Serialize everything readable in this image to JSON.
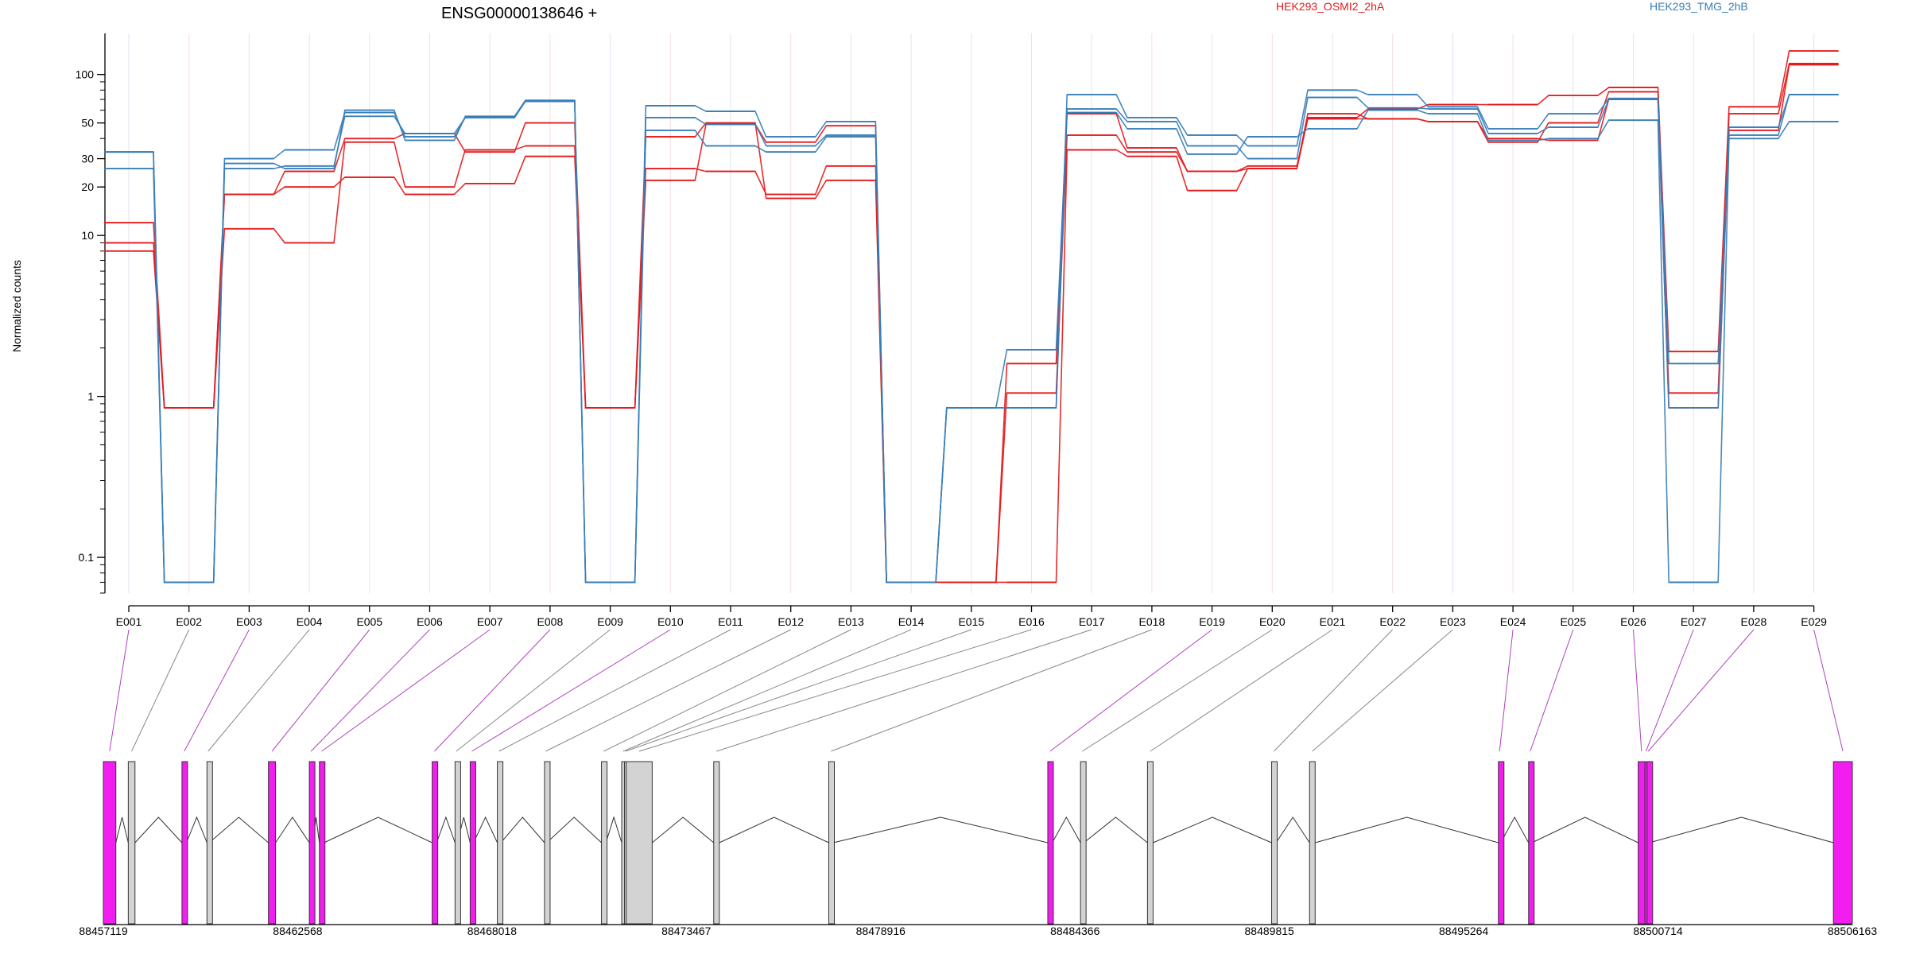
{
  "chart_data": {
    "type": "line",
    "title": "ENSG00000138646 +",
    "ylabel": "Normalized counts",
    "yscale": "log",
    "ylim": [
      0.06,
      180
    ],
    "yticks": [
      0.1,
      1,
      10,
      20,
      30,
      50,
      100
    ],
    "ytick_labels": [
      "0.1",
      "1",
      "10",
      "20",
      "30",
      "50",
      "100"
    ],
    "legend": [
      {
        "label": "HEK293_OSMI2_2hA",
        "color": "#e41a1c"
      },
      {
        "label": "HEK293_TMG_2hB",
        "color": "#377eb8"
      }
    ],
    "categories": [
      "E001",
      "E002",
      "E003",
      "E004",
      "E005",
      "E006",
      "E007",
      "E008",
      "E009",
      "E010",
      "E011",
      "E012",
      "E013",
      "E014",
      "E015",
      "E016",
      "E017",
      "E018",
      "E019",
      "E020",
      "E021",
      "E022",
      "E023",
      "E024",
      "E025",
      "E026",
      "E027",
      "E028",
      "E029"
    ],
    "series": [
      {
        "color": "#e41a1c",
        "values": [
          12,
          0.85,
          18,
          20,
          23,
          18,
          21,
          31,
          0.85,
          41,
          50,
          17,
          22,
          0.07,
          0.07,
          0.07,
          34,
          31,
          19,
          26,
          53,
          53,
          51,
          40,
          39,
          70,
          0.85,
          45,
          115
        ]
      },
      {
        "color": "#e41a1c",
        "values": [
          9,
          0.85,
          11,
          9,
          38,
          20,
          34,
          36,
          0.85,
          26,
          25,
          18,
          27,
          0.07,
          0.07,
          1.05,
          42,
          33,
          25,
          26,
          57,
          53,
          51,
          38,
          50,
          78,
          1.05,
          57,
          117
        ]
      },
      {
        "color": "#e41a1c",
        "values": [
          8,
          0.85,
          18,
          25,
          40,
          43,
          33,
          50,
          0.85,
          22,
          49,
          38,
          48,
          0.07,
          0.07,
          1.6,
          57,
          35,
          25,
          27,
          54,
          61,
          65,
          65,
          74,
          83,
          1.9,
          63,
          140
        ]
      },
      {
        "color": "#377eb8",
        "values": [
          33,
          0.07,
          30,
          34,
          58,
          41,
          54,
          68,
          0.07,
          64,
          59,
          41,
          51,
          0.07,
          0.85,
          0.85,
          75,
          54,
          42,
          36,
          80,
          75,
          63,
          46,
          57,
          71,
          1.6,
          42,
          75
        ]
      },
      {
        "color": "#377eb8",
        "values": [
          33,
          0.07,
          28,
          26,
          60,
          39,
          55,
          69,
          0.07,
          54,
          49,
          36,
          42,
          0.07,
          0.85,
          0.85,
          61,
          51,
          36,
          30,
          72,
          62,
          61,
          43,
          47,
          70,
          0.85,
          47,
          75
        ]
      },
      {
        "color": "#377eb8",
        "values": [
          26,
          0.07,
          26,
          27,
          55,
          43,
          54,
          69,
          0.07,
          45,
          36,
          33,
          41,
          0.07,
          0.85,
          1.95,
          58,
          46,
          32,
          41,
          46,
          60,
          57,
          39,
          40,
          52,
          0.07,
          40,
          51
        ]
      }
    ],
    "gene_axis": {
      "start": 88457119,
      "end": 88506163,
      "tick_labels": [
        "88457119",
        "88462568",
        "88468018",
        "88473467",
        "88478916",
        "88484366",
        "88489815",
        "88495264",
        "88500714",
        "88506163"
      ]
    },
    "exons": [
      {
        "id": "E001",
        "start": 88457119,
        "end": 88457470,
        "highlight": true
      },
      {
        "id": "E002",
        "start": 88457818,
        "end": 88458006,
        "highlight": false
      },
      {
        "id": "E003",
        "start": 88459324,
        "end": 88459450,
        "highlight": true
      },
      {
        "id": "E004",
        "start": 88460024,
        "end": 88460086,
        "highlight": false
      },
      {
        "id": "E005",
        "start": 88461748,
        "end": 88461948,
        "highlight": true
      },
      {
        "id": "E006",
        "start": 88462895,
        "end": 88462989,
        "highlight": true
      },
      {
        "id": "E007",
        "start": 88463177,
        "end": 88463306,
        "highlight": true
      },
      {
        "id": "E008",
        "start": 88466340,
        "end": 88466465,
        "highlight": true
      },
      {
        "id": "E009",
        "start": 88466981,
        "end": 88467044,
        "highlight": false
      },
      {
        "id": "E010",
        "start": 88467405,
        "end": 88467499,
        "highlight": true
      },
      {
        "id": "E011",
        "start": 88468167,
        "end": 88468262,
        "highlight": false
      },
      {
        "id": "E012",
        "start": 88469490,
        "end": 88469553,
        "highlight": false
      },
      {
        "id": "E013",
        "start": 88471087,
        "end": 88471212,
        "highlight": false
      },
      {
        "id": "E014",
        "start": 88471654,
        "end": 88471733,
        "highlight": false
      },
      {
        "id": "E015",
        "start": 88471733,
        "end": 88471780,
        "highlight": false
      },
      {
        "id": "E016",
        "start": 88471780,
        "end": 88472509,
        "highlight": false
      },
      {
        "id": "E017",
        "start": 88474235,
        "end": 88474391,
        "highlight": false
      },
      {
        "id": "E018",
        "start": 88477461,
        "end": 88477586,
        "highlight": false
      },
      {
        "id": "E019",
        "start": 88483602,
        "end": 88483727,
        "highlight": true
      },
      {
        "id": "E020",
        "start": 88484520,
        "end": 88484614,
        "highlight": false
      },
      {
        "id": "E021",
        "start": 88486398,
        "end": 88486555,
        "highlight": false
      },
      {
        "id": "E022",
        "start": 88489879,
        "end": 88490004,
        "highlight": false
      },
      {
        "id": "E023",
        "start": 88490943,
        "end": 88491099,
        "highlight": false
      },
      {
        "id": "E024",
        "start": 88496238,
        "end": 88496300,
        "highlight": true
      },
      {
        "id": "E025",
        "start": 88497084,
        "end": 88497178,
        "highlight": true
      },
      {
        "id": "E026",
        "start": 88500157,
        "end": 88500345,
        "highlight": true
      },
      {
        "id": "E027",
        "start": 88500345,
        "end": 88500407,
        "highlight": true
      },
      {
        "id": "E028",
        "start": 88500407,
        "end": 88500470,
        "highlight": true
      },
      {
        "id": "E029",
        "start": 88505632,
        "end": 88506163,
        "highlight": true
      }
    ],
    "grid": true
  }
}
